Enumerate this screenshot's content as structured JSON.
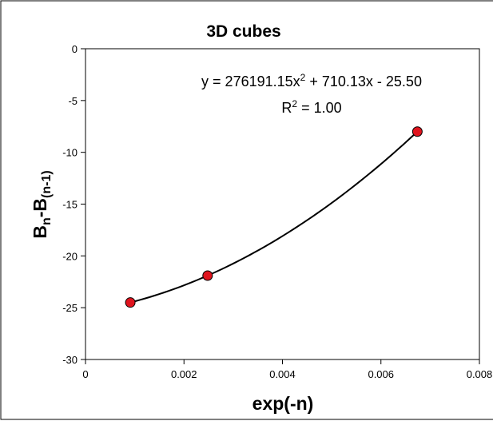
{
  "chart_data": {
    "type": "scatter",
    "title": "3D cubes",
    "xlabel": "exp(-n)",
    "ylabel": {
      "part1": "B",
      "sub1": "n",
      "part2": "-B",
      "sub2": "(n-1)"
    },
    "xlim": [
      0,
      0.008
    ],
    "ylim": [
      -30,
      0
    ],
    "x_ticks": [
      "0",
      "0.002",
      "0.004",
      "0.006",
      "0.008"
    ],
    "y_ticks": [
      "0",
      "-5",
      "-10",
      "-15",
      "-20",
      "-25",
      "-30"
    ],
    "grid": false,
    "legend": "none",
    "marker_color": "#e0141e",
    "points": [
      {
        "x": 0.00091,
        "y": -24.5
      },
      {
        "x": 0.00248,
        "y": -21.9
      },
      {
        "x": 0.00674,
        "y": -8.0
      }
    ],
    "trendline": {
      "type": "polynomial",
      "order": 2,
      "coefficients": [
        276191.15,
        710.13,
        -25.5
      ],
      "equation_part1": "y = 276191.15x",
      "equation_exp1": "2",
      "equation_part2": " + 710.13x - 25.50",
      "r2_part1": "R",
      "r2_exp": "2",
      "r2_part2": " = 1.00"
    }
  }
}
